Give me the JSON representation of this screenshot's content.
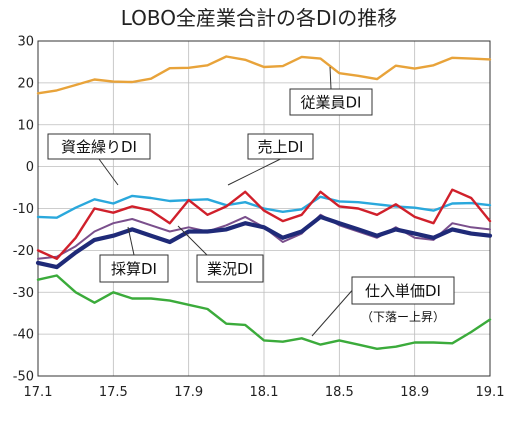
{
  "chart_data": {
    "type": "line",
    "title": "LOBO全産業合計の各DIの推移",
    "x": [
      "17.1",
      "17.2",
      "17.3",
      "17.4",
      "17.5",
      "17.6",
      "17.7",
      "17.8",
      "17.9",
      "17.10",
      "17.11",
      "17.12",
      "18.1",
      "18.2",
      "18.3",
      "18.4",
      "18.5",
      "18.6",
      "18.7",
      "18.8",
      "18.9",
      "18.10",
      "18.11",
      "18.12",
      "19.1"
    ],
    "x_tick_labels": [
      "17.1",
      "17.5",
      "17.9",
      "18.1",
      "18.5",
      "18.9",
      "19.1"
    ],
    "y_tick_labels": [
      "30",
      "20",
      "10",
      "0",
      "-10",
      "-20",
      "-30",
      "-40",
      "-50"
    ],
    "ylim": [
      -50,
      30
    ],
    "grid": true,
    "series": [
      {
        "name": "従業員DI",
        "color": "#e8a33a",
        "width": 2.4,
        "values": [
          17.5,
          18.2,
          19.5,
          20.8,
          20.3,
          20.2,
          21.0,
          23.5,
          23.6,
          24.2,
          26.3,
          25.5,
          23.8,
          24.0,
          26.2,
          25.8,
          22.3,
          21.7,
          20.9,
          24.1,
          23.4,
          24.2,
          26.0,
          25.8,
          25.6
        ]
      },
      {
        "name": "資金繰りDI",
        "color": "#2aa8dc",
        "width": 2.4,
        "values": [
          -12.0,
          -12.2,
          -9.8,
          -7.8,
          -8.8,
          -7.0,
          -7.5,
          -8.2,
          -8.0,
          -7.8,
          -9.2,
          -8.5,
          -10.0,
          -10.8,
          -10.2,
          -7.2,
          -8.3,
          -8.5,
          -9.0,
          -9.5,
          -9.8,
          -10.5,
          -8.8,
          -8.7,
          -9.2
        ]
      },
      {
        "name": "売上DI",
        "color": "#d0202b",
        "width": 2.4,
        "values": [
          -20.0,
          -22.0,
          -17.0,
          -10.0,
          -11.0,
          -9.5,
          -10.5,
          -13.5,
          -8.0,
          -11.5,
          -9.5,
          -6.0,
          -10.5,
          -13.0,
          -11.5,
          -6.0,
          -9.5,
          -10.0,
          -11.5,
          -9.0,
          -12.0,
          -13.5,
          -5.5,
          -7.5,
          -13.0
        ]
      },
      {
        "name": "採算DI",
        "color": "#7a4f8c",
        "width": 2.0,
        "values": [
          -22.0,
          -21.5,
          -19.0,
          -15.5,
          -13.5,
          -12.5,
          -14.0,
          -15.5,
          -14.5,
          -15.5,
          -14.0,
          -12.0,
          -14.5,
          -18.0,
          -16.0,
          -11.5,
          -14.0,
          -15.5,
          -17.0,
          -14.5,
          -17.0,
          -17.5,
          -13.5,
          -14.5,
          -15.0
        ]
      },
      {
        "name": "業況DI",
        "color": "#1f2a78",
        "width": 4.2,
        "values": [
          -23.0,
          -24.0,
          -20.5,
          -17.5,
          -16.5,
          -15.0,
          -16.5,
          -18.0,
          -15.5,
          -15.5,
          -15.0,
          -13.5,
          -14.5,
          -17.0,
          -15.5,
          -12.0,
          -13.5,
          -15.0,
          -16.5,
          -15.0,
          -16.0,
          -17.0,
          -15.0,
          -16.0,
          -16.5
        ]
      },
      {
        "name": "仕入単価DI",
        "color": "#3bab3b",
        "width": 2.4,
        "values": [
          -27.0,
          -26.0,
          -30.0,
          -32.5,
          -30.0,
          -31.5,
          -31.5,
          -32.0,
          -33.0,
          -34.0,
          -37.5,
          -37.8,
          -41.5,
          -41.8,
          -41.0,
          -42.5,
          -41.5,
          -42.5,
          -43.5,
          -43.0,
          -42.0,
          -42.0,
          -42.2,
          -39.5,
          -36.5
        ]
      }
    ],
    "annotations": [
      {
        "series": "従業員DI",
        "text": "従業員DI",
        "box": true
      },
      {
        "series": "資金繰りDI",
        "text": "資金繰りDI",
        "box": true
      },
      {
        "series": "売上DI",
        "text": "売上DI",
        "box": true
      },
      {
        "series": "採算DI",
        "text": "採算DI",
        "box": true
      },
      {
        "series": "業況DI",
        "text": "業況DI",
        "box": true
      },
      {
        "series": "仕入単価DI",
        "text": "仕入単価DI",
        "box": true
      },
      {
        "text": "（下落ー上昇）",
        "box": false
      }
    ]
  }
}
